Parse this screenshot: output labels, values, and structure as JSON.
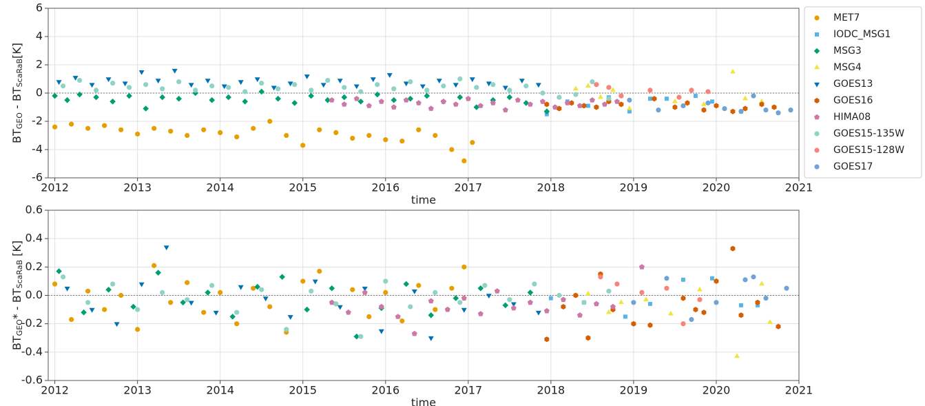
{
  "chart_data": [
    {
      "type": "scatter",
      "ylabel": [
        "BT",
        "GEO",
        " - BT",
        "ScaRaB",
        "[K]"
      ],
      "xlabel": "time",
      "xlim": [
        2011.92,
        2021
      ],
      "xticks": [
        2012,
        2013,
        2014,
        2015,
        2016,
        2017,
        2018,
        2019,
        2020,
        2021
      ],
      "ylim": [
        -6,
        6
      ],
      "yticks": [
        -6,
        -4,
        -2,
        0,
        2,
        4,
        6
      ],
      "grid": true,
      "hline": 0,
      "legend": "outside right",
      "series": [
        {
          "name": "MET7",
          "color": "#E69F00",
          "marker": "circle",
          "x": [
            2012.0,
            2012.2,
            2012.4,
            2012.6,
            2012.8,
            2013.0,
            2013.2,
            2013.4,
            2013.6,
            2013.8,
            2014.0,
            2014.2,
            2014.4,
            2014.6,
            2014.8,
            2015.0,
            2015.2,
            2015.4,
            2015.6,
            2015.8,
            2016.0,
            2016.2,
            2016.4,
            2016.6,
            2016.8,
            2016.95,
            2017.05
          ],
          "values": [
            -2.4,
            -2.2,
            -2.5,
            -2.3,
            -2.6,
            -2.9,
            -2.5,
            -2.7,
            -3.0,
            -2.6,
            -2.8,
            -3.1,
            -2.5,
            -2.0,
            -3.0,
            -3.7,
            -2.6,
            -2.8,
            -3.2,
            -3.0,
            -3.3,
            -3.4,
            -2.6,
            -3.0,
            -4.0,
            -4.8,
            -3.5
          ]
        },
        {
          "name": "IODC_MSG1",
          "color": "#56B4E9",
          "marker": "square",
          "x": [
            2017.95,
            2018.2,
            2018.45,
            2018.7,
            2018.95,
            2019.2,
            2019.4,
            2019.75,
            2019.95,
            2020.3
          ],
          "values": [
            -1.5,
            -0.6,
            -0.9,
            -0.3,
            -1.3,
            -0.4,
            -0.4,
            -0.2,
            -0.6,
            -1.3
          ]
        },
        {
          "name": "MSG3",
          "color": "#009E73",
          "marker": "diamond",
          "x": [
            2012.0,
            2012.15,
            2012.3,
            2012.5,
            2012.7,
            2012.9,
            2013.1,
            2013.3,
            2013.5,
            2013.7,
            2013.9,
            2014.1,
            2014.3,
            2014.5,
            2014.7,
            2014.9,
            2015.1,
            2015.3,
            2015.5,
            2015.7,
            2015.9,
            2016.1,
            2016.3,
            2016.5,
            2016.7,
            2016.9,
            2017.1,
            2017.3,
            2017.5,
            2017.7,
            2017.95
          ],
          "values": [
            -0.2,
            -0.5,
            -0.1,
            -0.3,
            -0.6,
            -0.2,
            -1.1,
            -0.3,
            -0.4,
            0.0,
            -0.5,
            -0.3,
            -0.6,
            0.1,
            -0.4,
            -0.7,
            -0.2,
            -0.5,
            -0.3,
            -0.6,
            -0.1,
            -0.5,
            -0.4,
            -0.2,
            -0.6,
            -0.3,
            -1.0,
            -0.5,
            -0.3,
            -0.7,
            -1.3
          ]
        },
        {
          "name": "MSG4",
          "color": "#F0E442",
          "marker": "triangle-up",
          "x": [
            2018.3,
            2018.45,
            2018.6,
            2018.75,
            2018.95,
            2019.5,
            2019.85,
            2020.2,
            2020.35,
            2020.55
          ],
          "values": [
            0.3,
            0.5,
            -0.3,
            0.2,
            -1.1,
            -0.6,
            -0.8,
            1.5,
            -0.4,
            -0.6
          ]
        },
        {
          "name": "GOES13",
          "color": "#0072B2",
          "marker": "triangle-down",
          "x": [
            2012.05,
            2012.25,
            2012.45,
            2012.65,
            2012.85,
            2013.05,
            2013.25,
            2013.45,
            2013.65,
            2013.85,
            2014.05,
            2014.25,
            2014.45,
            2014.65,
            2014.85,
            2015.05,
            2015.25,
            2015.45,
            2015.65,
            2015.85,
            2016.05,
            2016.25,
            2016.45,
            2016.65,
            2016.85,
            2017.05,
            2017.25,
            2017.45,
            2017.65,
            2017.85
          ],
          "values": [
            0.8,
            1.1,
            0.6,
            1.0,
            0.7,
            1.5,
            0.9,
            1.6,
            0.6,
            0.9,
            0.5,
            0.8,
            1.0,
            0.4,
            0.7,
            1.2,
            0.6,
            0.9,
            0.5,
            1.0,
            1.3,
            0.7,
            0.5,
            0.9,
            0.6,
            1.0,
            0.7,
            0.4,
            0.9,
            0.6
          ]
        },
        {
          "name": "GOES16",
          "color": "#D55E00",
          "marker": "hexagon",
          "x": [
            2017.95,
            2018.1,
            2018.25,
            2018.4,
            2018.55,
            2018.7,
            2018.85,
            2019.25,
            2019.5,
            2019.65,
            2019.85,
            2020.0,
            2020.2,
            2020.35,
            2020.55,
            2020.7
          ],
          "values": [
            -0.8,
            -1.1,
            -0.7,
            -0.9,
            -1.0,
            -0.6,
            -0.8,
            -0.4,
            -1.0,
            -0.7,
            -1.2,
            -0.9,
            -1.3,
            -1.1,
            -0.8,
            -1.0
          ]
        },
        {
          "name": "HIMA08",
          "color": "#CC79A7",
          "marker": "pentagon",
          "x": [
            2015.35,
            2015.5,
            2015.65,
            2015.8,
            2015.95,
            2016.1,
            2016.25,
            2016.4,
            2016.55,
            2016.7,
            2016.85,
            2017.0,
            2017.15,
            2017.3,
            2017.45,
            2017.6,
            2017.75,
            2017.9,
            2018.05,
            2018.2,
            2018.35,
            2018.5,
            2018.65,
            2018.8
          ],
          "values": [
            -0.5,
            -0.8,
            -0.4,
            -0.9,
            -0.6,
            -1.0,
            -0.5,
            -0.7,
            -1.1,
            -0.6,
            -0.8,
            -0.4,
            -0.9,
            -0.7,
            -1.2,
            -0.5,
            -0.8,
            -0.6,
            -1.0,
            -0.7,
            -0.9,
            -0.5,
            -0.8,
            -0.6
          ]
        },
        {
          "name": "GOES15-135W",
          "color": "#8fd3c6",
          "marker": "circle",
          "x": [
            2012.1,
            2012.3,
            2012.5,
            2012.7,
            2012.9,
            2013.1,
            2013.3,
            2013.5,
            2013.7,
            2013.9,
            2014.1,
            2014.3,
            2014.5,
            2014.7,
            2014.9,
            2015.1,
            2015.3,
            2015.5,
            2015.7,
            2015.9,
            2016.1,
            2016.3,
            2016.5,
            2016.7,
            2016.9,
            2017.1,
            2017.3,
            2017.5,
            2017.7,
            2017.9,
            2018.1,
            2018.3,
            2018.5,
            2018.7,
            2018.85
          ],
          "values": [
            0.5,
            0.9,
            0.2,
            0.7,
            0.4,
            0.6,
            0.3,
            0.8,
            0.2,
            0.5,
            0.4,
            0.1,
            0.7,
            0.3,
            0.6,
            0.2,
            0.9,
            0.4,
            0.1,
            0.6,
            0.3,
            0.8,
            0.2,
            0.5,
            1.0,
            0.4,
            0.6,
            0.2,
            0.5,
            0.0,
            -0.3,
            -0.1,
            0.8,
            -0.4,
            -0.2
          ]
        },
        {
          "name": "GOES15-128W",
          "color": "#f8837a",
          "marker": "circle",
          "x": [
            2018.55,
            2018.7,
            2018.85,
            2019.2,
            2019.55,
            2019.7,
            2019.9
          ],
          "values": [
            0.6,
            0.4,
            -0.2,
            0.2,
            -0.3,
            0.2,
            0.1
          ]
        },
        {
          "name": "GOES17",
          "color": "#6fa3d4",
          "marker": "circle",
          "x": [
            2018.95,
            2019.3,
            2019.6,
            2019.9,
            2020.1,
            2020.3,
            2020.45,
            2020.6,
            2020.75,
            2020.9
          ],
          "values": [
            -0.5,
            -1.2,
            -0.9,
            -0.7,
            -1.1,
            -1.3,
            -0.2,
            -1.2,
            -1.4,
            -1.2
          ]
        }
      ]
    },
    {
      "type": "scatter",
      "ylabel": [
        "BT",
        "GEO",
        "* - BT",
        "ScaRaB",
        " [K]"
      ],
      "xlabel": "time",
      "xlim": [
        2011.92,
        2021
      ],
      "xticks": [
        2012,
        2013,
        2014,
        2015,
        2016,
        2017,
        2018,
        2019,
        2020,
        2021
      ],
      "ylim": [
        -0.6,
        0.6
      ],
      "yticks": [
        -0.6,
        -0.4,
        -0.2,
        {
          "value": 0,
          "label": "0.0"
        },
        0.2,
        0.4,
        0.6
      ],
      "grid": true,
      "hline": 0,
      "series": [
        {
          "color": "#E69F00",
          "marker": "circle",
          "x": [
            2012.0,
            2012.2,
            2012.4,
            2012.6,
            2012.8,
            2013.0,
            2013.2,
            2013.4,
            2013.6,
            2013.8,
            2014.0,
            2014.2,
            2014.4,
            2014.6,
            2014.8,
            2015.0,
            2015.2,
            2015.4,
            2015.6,
            2015.8,
            2016.0,
            2016.2,
            2016.4,
            2016.6,
            2016.8,
            2016.95
          ],
          "values": [
            0.08,
            -0.17,
            0.03,
            -0.1,
            0.0,
            -0.24,
            0.21,
            -0.05,
            0.09,
            -0.12,
            0.02,
            -0.2,
            0.05,
            -0.08,
            -0.26,
            0.1,
            0.17,
            -0.06,
            0.04,
            -0.15,
            0.02,
            -0.18,
            0.07,
            -0.1,
            0.05,
            0.2
          ]
        },
        {
          "color": "#56B4E9",
          "marker": "square",
          "x": [
            2018.0,
            2018.4,
            2018.9,
            2019.2,
            2019.6,
            2019.95,
            2020.3,
            2020.5
          ],
          "values": [
            -0.02,
            -0.05,
            -0.15,
            -0.06,
            0.11,
            0.12,
            -0.07,
            -0.07
          ]
        },
        {
          "color": "#009E73",
          "marker": "diamond",
          "x": [
            2012.05,
            2012.35,
            2012.65,
            2012.95,
            2013.25,
            2013.55,
            2013.85,
            2014.15,
            2014.45,
            2014.75,
            2015.05,
            2015.35,
            2015.65,
            2015.95,
            2016.25,
            2016.55,
            2016.85,
            2017.15,
            2017.45,
            2017.75
          ],
          "values": [
            0.17,
            -0.12,
            0.04,
            -0.08,
            0.16,
            -0.05,
            0.02,
            -0.15,
            0.06,
            0.13,
            -0.1,
            0.05,
            -0.29,
            -0.09,
            0.08,
            -0.14,
            -0.02,
            0.05,
            -0.07,
            0.02
          ]
        },
        {
          "color": "#F0E442",
          "marker": "triangle-up",
          "x": [
            2018.45,
            2018.7,
            2018.85,
            2019.15,
            2019.45,
            2019.8,
            2020.25,
            2020.55,
            2020.65
          ],
          "values": [
            0.01,
            -0.12,
            -0.05,
            -0.03,
            -0.13,
            0.04,
            -0.43,
            0.08,
            -0.19
          ]
        },
        {
          "color": "#0072B2",
          "marker": "triangle-down",
          "x": [
            2012.15,
            2012.45,
            2012.75,
            2013.05,
            2013.35,
            2013.65,
            2013.95,
            2014.25,
            2014.55,
            2014.85,
            2015.15,
            2015.45,
            2015.75,
            2015.95,
            2016.35,
            2016.55,
            2016.95,
            2017.25,
            2017.55,
            2017.85
          ],
          "values": [
            0.05,
            -0.1,
            -0.2,
            0.08,
            0.34,
            -0.05,
            -0.12,
            0.06,
            -0.02,
            -0.15,
            0.1,
            -0.08,
            0.05,
            -0.25,
            0.03,
            -0.3,
            -0.1,
            0.0,
            -0.06,
            -0.12
          ]
        },
        {
          "color": "#D55E00",
          "marker": "hexagon",
          "x": [
            2017.95,
            2018.15,
            2018.3,
            2018.45,
            2018.6,
            2018.75,
            2019.0,
            2019.2,
            2019.6,
            2019.75,
            2019.85,
            2020.0,
            2020.2,
            2020.3,
            2020.5,
            2020.75
          ],
          "values": [
            -0.31,
            -0.08,
            0.0,
            -0.3,
            0.15,
            -0.1,
            -0.2,
            -0.21,
            -0.02,
            -0.1,
            -0.12,
            0.1,
            0.33,
            -0.14,
            -0.05,
            -0.22
          ]
        },
        {
          "color": "#CC79A7",
          "marker": "pentagon",
          "x": [
            2015.35,
            2015.55,
            2015.75,
            2015.95,
            2016.15,
            2016.35,
            2016.55,
            2016.75,
            2016.95,
            2017.15,
            2017.35,
            2017.55,
            2017.75,
            2017.95,
            2018.15,
            2018.35,
            2018.55,
            2018.75,
            2019.1
          ],
          "values": [
            -0.05,
            -0.12,
            0.02,
            -0.08,
            -0.15,
            -0.27,
            -0.04,
            -0.1,
            -0.02,
            -0.13,
            0.03,
            -0.09,
            -0.05,
            -0.11,
            -0.03,
            -0.14,
            -0.06,
            -0.08,
            0.2
          ]
        },
        {
          "color": "#8fd3c6",
          "marker": "circle",
          "x": [
            2012.1,
            2012.4,
            2012.7,
            2013.0,
            2013.3,
            2013.6,
            2013.9,
            2014.2,
            2014.5,
            2014.8,
            2015.1,
            2015.4,
            2015.7,
            2016.0,
            2016.3,
            2016.6,
            2016.9,
            2017.2,
            2017.5,
            2017.8,
            2018.1,
            2018.4,
            2018.7
          ],
          "values": [
            0.13,
            -0.05,
            0.08,
            -0.1,
            0.02,
            -0.03,
            0.07,
            -0.12,
            0.04,
            -0.24,
            0.03,
            -0.06,
            -0.29,
            0.1,
            -0.08,
            0.02,
            -0.05,
            0.07,
            -0.03,
            0.08,
            0.0,
            -0.05,
            0.03
          ]
        },
        {
          "color": "#f8837a",
          "marker": "circle",
          "x": [
            2018.6,
            2018.8,
            2019.1,
            2019.4,
            2019.6,
            2019.8
          ],
          "values": [
            0.13,
            0.08,
            0.02,
            0.05,
            -0.2,
            -0.03
          ]
        },
        {
          "color": "#6fa3d4",
          "marker": "circle",
          "x": [
            2019.0,
            2019.4,
            2019.7,
            2020.0,
            2020.35,
            2020.45,
            2020.6,
            2020.85
          ],
          "values": [
            -0.05,
            0.12,
            -0.17,
            -0.05,
            0.11,
            0.13,
            -0.02,
            0.05
          ]
        }
      ]
    }
  ]
}
